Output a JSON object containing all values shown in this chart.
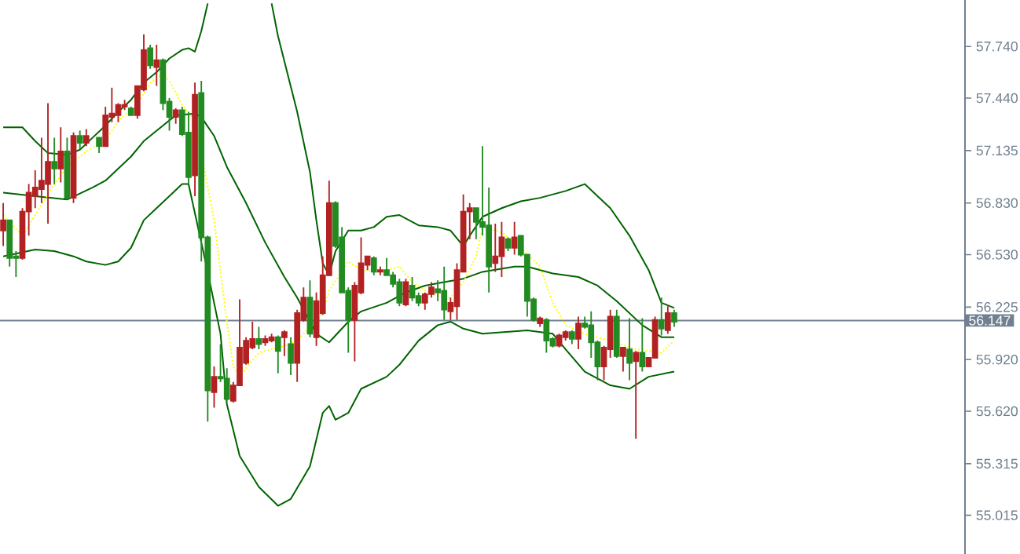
{
  "chart_data": {
    "type": "candlestick",
    "categories": [
      null,
      null,
      null,
      null,
      null,
      null,
      null,
      null,
      null,
      null,
      null,
      null,
      null,
      null,
      null,
      null,
      null,
      null,
      null,
      null,
      null,
      null,
      null,
      null,
      null,
      null,
      null,
      null,
      null,
      null,
      null,
      null,
      null,
      null,
      null,
      null,
      null,
      null,
      null,
      null,
      null,
      null,
      null,
      null,
      null,
      null,
      null,
      null,
      null,
      null,
      null,
      null,
      null,
      null,
      null,
      null,
      null,
      null,
      null,
      null,
      null,
      null,
      null,
      null,
      null,
      null,
      null,
      null,
      null,
      null,
      null,
      null,
      null,
      null,
      null,
      null,
      null,
      null,
      null,
      null,
      null,
      null,
      null,
      null,
      null,
      null,
      null,
      null,
      null,
      null,
      null,
      null,
      null,
      null,
      null,
      null,
      null,
      null,
      null,
      null,
      null,
      null,
      null,
      null,
      null,
      null,
      null,
      null,
      null,
      null,
      null,
      null,
      null,
      null,
      null,
      null,
      null,
      null,
      null,
      null,
      null,
      null,
      null,
      null,
      null,
      null,
      null,
      null,
      null,
      null,
      null,
      null,
      null,
      null,
      null,
      null,
      null,
      null,
      null,
      null,
      null,
      null,
      null,
      null,
      null,
      null,
      null,
      null,
      null,
      null,
      null
    ],
    "ohlc": [
      [
        56.67,
        56.83,
        56.58,
        56.73
      ],
      [
        56.73,
        56.73,
        56.46,
        56.51
      ],
      [
        56.52,
        56.55,
        56.4,
        56.51
      ],
      [
        56.51,
        56.8,
        56.5,
        56.78
      ],
      [
        56.78,
        56.94,
        56.64,
        56.89
      ],
      [
        56.87,
        57.02,
        56.8,
        56.92
      ],
      [
        56.91,
        57.21,
        56.83,
        56.96
      ],
      [
        56.94,
        57.41,
        56.71,
        57.07
      ],
      [
        57.07,
        57.21,
        56.94,
        57.03
      ],
      [
        57.03,
        57.27,
        56.95,
        57.13
      ],
      [
        57.13,
        57.21,
        56.85,
        56.86
      ],
      [
        56.86,
        57.24,
        56.83,
        57.22
      ],
      [
        57.22,
        57.25,
        57.14,
        57.18
      ],
      [
        57.18,
        57.26,
        57.16,
        57.22
      ],
      null,
      [
        57.21,
        57.21,
        57.12,
        57.16
      ],
      [
        57.16,
        57.39,
        57.16,
        57.34
      ],
      [
        57.33,
        57.5,
        57.3,
        57.35
      ],
      [
        57.34,
        57.41,
        57.3,
        57.4
      ],
      [
        57.39,
        57.43,
        57.37,
        57.4
      ],
      [
        57.38,
        57.39,
        57.34,
        57.34
      ],
      [
        57.34,
        57.51,
        57.32,
        57.51
      ],
      [
        57.49,
        57.81,
        57.48,
        57.72
      ],
      [
        57.73,
        57.75,
        57.61,
        57.63
      ],
      [
        57.62,
        57.75,
        57.51,
        57.66
      ],
      [
        57.66,
        57.67,
        57.37,
        57.41
      ],
      [
        57.42,
        57.44,
        57.25,
        57.33
      ],
      [
        57.33,
        57.38,
        57.29,
        57.37
      ],
      [
        57.37,
        57.39,
        57.22,
        57.23
      ],
      [
        57.24,
        57.36,
        56.94,
        56.98
      ],
      [
        56.99,
        57.53,
        56.87,
        57.46
      ],
      [
        57.47,
        57.54,
        56.49,
        56.63
      ],
      [
        56.63,
        56.64,
        55.56,
        55.74
      ],
      [
        55.73,
        55.88,
        55.64,
        55.82
      ],
      [
        55.82,
        56.01,
        55.79,
        55.81
      ],
      [
        55.81,
        55.87,
        55.68,
        55.69
      ],
      [
        55.68,
        55.79,
        55.67,
        55.77
      ],
      [
        55.77,
        56.27,
        55.77,
        55.99
      ],
      [
        55.9,
        56.05,
        55.89,
        56.03
      ],
      [
        55.99,
        56.14,
        55.98,
        56.04
      ],
      [
        56.04,
        56.11,
        55.98,
        56.01
      ],
      [
        56.02,
        56.06,
        56.0,
        56.04
      ],
      [
        56.03,
        56.07,
        56.02,
        56.05
      ],
      [
        56.05,
        56.06,
        55.84,
        55.97
      ],
      [
        56.05,
        56.09,
        55.94,
        56.08
      ],
      [
        56.01,
        56.05,
        55.83,
        55.9
      ],
      [
        55.9,
        56.21,
        55.79,
        56.19
      ],
      [
        56.15,
        56.34,
        56.14,
        56.28
      ],
      [
        56.28,
        56.38,
        56.05,
        56.07
      ],
      [
        56.05,
        56.31,
        56.0,
        56.26
      ],
      [
        56.19,
        56.52,
        56.18,
        56.41
      ],
      [
        56.41,
        56.96,
        56.41,
        56.83
      ],
      [
        56.83,
        56.84,
        56.57,
        56.58
      ],
      [
        56.63,
        56.69,
        56.31,
        56.31
      ],
      [
        56.32,
        56.34,
        55.96,
        56.15
      ],
      [
        56.15,
        56.37,
        55.91,
        56.35
      ],
      [
        56.31,
        56.63,
        56.3,
        56.48
      ],
      [
        56.47,
        56.52,
        56.44,
        56.52
      ],
      [
        56.51,
        56.52,
        56.41,
        56.43
      ],
      [
        56.43,
        56.46,
        56.41,
        56.44
      ],
      [
        56.44,
        56.51,
        56.41,
        56.41
      ],
      [
        56.41,
        56.43,
        56.34,
        56.36
      ],
      [
        56.37,
        56.39,
        56.23,
        56.25
      ],
      [
        56.24,
        56.39,
        56.23,
        56.37
      ],
      [
        56.35,
        56.4,
        56.26,
        56.28
      ],
      [
        56.29,
        56.31,
        56.23,
        56.25
      ],
      [
        56.25,
        56.31,
        56.21,
        56.3
      ],
      [
        56.3,
        56.37,
        56.28,
        56.34
      ],
      [
        56.33,
        56.38,
        56.26,
        56.31
      ],
      [
        56.32,
        56.46,
        56.15,
        56.21
      ],
      [
        56.2,
        56.28,
        56.15,
        56.25
      ],
      [
        56.23,
        56.48,
        56.15,
        56.44
      ],
      [
        56.43,
        56.88,
        56.43,
        56.78
      ],
      [
        56.78,
        56.83,
        56.62,
        56.8
      ],
      [
        56.8,
        56.8,
        56.62,
        56.72
      ],
      [
        56.72,
        57.16,
        56.64,
        56.69
      ],
      [
        56.7,
        56.92,
        56.31,
        56.46
      ],
      [
        56.48,
        56.71,
        56.43,
        56.52
      ],
      [
        56.52,
        56.72,
        56.4,
        56.63
      ],
      [
        56.62,
        56.63,
        56.55,
        56.57
      ],
      [
        56.57,
        56.72,
        56.53,
        56.63
      ],
      [
        56.64,
        56.64,
        56.52,
        56.53
      ],
      [
        56.53,
        56.53,
        56.17,
        56.26
      ],
      [
        56.27,
        56.28,
        56.14,
        56.15
      ],
      [
        56.13,
        56.17,
        56.11,
        56.16
      ],
      [
        56.15,
        56.16,
        55.96,
        56.03
      ],
      [
        56.04,
        56.05,
        55.99,
        56.0
      ],
      [
        56.0,
        56.07,
        55.99,
        56.06
      ],
      [
        56.05,
        56.09,
        56.03,
        56.08
      ],
      [
        56.08,
        56.09,
        56.01,
        56.04
      ],
      [
        56.04,
        56.17,
        55.98,
        56.13
      ],
      [
        56.13,
        56.17,
        56.1,
        56.11
      ],
      [
        56.12,
        56.2,
        55.93,
        56.02
      ],
      [
        56.02,
        56.03,
        55.8,
        55.88
      ],
      [
        55.88,
        56.0,
        55.8,
        55.99
      ],
      [
        55.98,
        56.21,
        55.93,
        56.17
      ],
      [
        56.17,
        56.21,
        55.93,
        55.94
      ],
      [
        55.94,
        55.99,
        55.85,
        55.99
      ],
      [
        55.98,
        56.16,
        55.8,
        55.9
      ],
      [
        55.91,
        55.97,
        55.46,
        55.96
      ],
      [
        55.96,
        56.16,
        55.85,
        55.88
      ],
      [
        55.88,
        55.93,
        55.88,
        55.93
      ],
      [
        55.93,
        56.17,
        55.93,
        56.15
      ],
      [
        56.15,
        56.28,
        56.06,
        56.1
      ],
      [
        56.09,
        56.23,
        56.07,
        56.19
      ],
      [
        56.19,
        56.21,
        56.11,
        56.14
      ],
      null,
      null,
      null,
      null,
      null,
      null,
      null,
      null,
      null,
      null,
      null,
      null,
      null,
      null,
      null,
      null,
      null,
      null,
      null,
      null,
      null,
      null,
      null,
      null,
      null,
      null,
      null,
      null,
      null,
      null,
      null,
      null,
      null,
      null,
      null,
      null,
      null,
      null,
      null,
      null,
      null,
      null,
      null,
      null,
      null
    ],
    "colors": [
      "#b22222",
      "#228b22",
      "#228b22",
      "#b22222",
      "#b22222",
      "#b22222",
      "#b22222",
      "#b22222",
      "#228b22",
      "#b22222",
      "#228b22",
      "#b22222",
      "#228b22",
      "#b22222",
      null,
      "#228b22",
      "#b22222",
      "#b22222",
      "#b22222",
      "#b22222",
      "#228b22",
      "#b22222",
      "#b22222",
      "#228b22",
      "#b22222",
      "#228b22",
      "#228b22",
      "#b22222",
      "#228b22",
      "#228b22",
      "#b22222",
      "#228b22",
      "#228b22",
      "#b22222",
      "#228b22",
      "#228b22",
      "#b22222",
      "#b22222",
      "#b22222",
      "#b22222",
      "#228b22",
      "#b22222",
      "#b22222",
      "#228b22",
      "#b22222",
      "#228b22",
      "#b22222",
      "#b22222",
      "#228b22",
      "#b22222",
      "#b22222",
      "#b22222",
      "#228b22",
      "#228b22",
      "#228b22",
      "#b22222",
      "#b22222",
      "#b22222",
      "#228b22",
      "#b22222",
      "#228b22",
      "#228b22",
      "#228b22",
      "#b22222",
      "#228b22",
      "#228b22",
      "#b22222",
      "#b22222",
      "#228b22",
      "#228b22",
      "#b22222",
      "#b22222",
      "#b22222",
      "#b22222",
      "#228b22",
      "#228b22",
      "#228b22",
      "#b22222",
      "#b22222",
      "#228b22",
      "#b22222",
      "#228b22",
      "#228b22",
      "#228b22",
      "#b22222",
      "#228b22",
      "#228b22",
      "#b22222",
      "#b22222",
      "#228b22",
      "#b22222",
      "#228b22",
      "#228b22",
      "#228b22",
      "#b22222",
      "#b22222",
      "#228b22",
      "#b22222",
      "#228b22",
      "#b22222",
      "#228b22",
      "#b22222",
      "#b22222",
      "#228b22",
      "#b22222",
      "#228b22",
      null,
      null,
      null,
      null,
      null,
      null,
      null,
      null,
      null,
      null,
      null,
      null,
      null,
      null,
      null,
      null,
      null,
      null,
      null,
      null,
      null,
      null,
      null,
      null,
      null,
      null,
      null,
      null,
      null,
      null,
      null,
      null,
      null,
      null,
      null,
      null,
      null,
      null,
      null,
      null,
      null,
      null,
      null,
      null,
      null
    ],
    "series": [
      {
        "type": "line",
        "color": "#006400",
        "line_style": "solid",
        "values": [
          57.27,
          null,
          null,
          57.27,
          null,
          57.19,
          null,
          57.12,
          null,
          null,
          57.11,
          null,
          57.14,
          null,
          57.21,
          null,
          57.28,
          null,
          57.36,
          null,
          57.43,
          null,
          57.53,
          null,
          57.59,
          null,
          57.67,
          null,
          57.72,
          57.73,
          57.71,
          57.83,
          57.99,
          null,
          null,
          null,
          null,
          null,
          null,
          null,
          null,
          null,
          null,
          null,
          null,
          null,
          null,
          null,
          null,
          null,
          null,
          null,
          null,
          null,
          null,
          null,
          null,
          null,
          null,
          null,
          null,
          null,
          null,
          null,
          null,
          null,
          null,
          null,
          null,
          null,
          null,
          null,
          null,
          null,
          null,
          null,
          null,
          null,
          null,
          null,
          null,
          null,
          null,
          null,
          null,
          null,
          null,
          null,
          null,
          null,
          null,
          null,
          null,
          null,
          null,
          null,
          null,
          null,
          null,
          null,
          null,
          null,
          null,
          null,
          null,
          null,
          null,
          null,
          null,
          null,
          null,
          null,
          null,
          null,
          null,
          null,
          null,
          null,
          null,
          null,
          null,
          null,
          null,
          null,
          null,
          null,
          null,
          null,
          null,
          null,
          null,
          null,
          null,
          null,
          null,
          null,
          null,
          null,
          null,
          null,
          null,
          null,
          null,
          null,
          null,
          null,
          null,
          null,
          null,
          null,
          null
        ]
      },
      {
        "type": "line",
        "color": "#006400",
        "line_style": "solid",
        "values": [
          null,
          null,
          null,
          null,
          null,
          null,
          null,
          null,
          null,
          null,
          null,
          null,
          null,
          null,
          null,
          null,
          null,
          null,
          null,
          null,
          null,
          null,
          null,
          null,
          null,
          null,
          null,
          null,
          null,
          null,
          null,
          null,
          null,
          null,
          null,
          null,
          null,
          null,
          null,
          null,
          null,
          null,
          57.99,
          57.8,
          null,
          null,
          57.36,
          null,
          57.01,
          56.73,
          56.48,
          56.41,
          56.55,
          null,
          56.67,
          null,
          56.67,
          null,
          56.69,
          null,
          56.75,
          null,
          56.76,
          null,
          null,
          56.7,
          null,
          null,
          56.69,
          null,
          56.67,
          null,
          56.58,
          56.64,
          null,
          56.75,
          null,
          null,
          56.8,
          null,
          null,
          56.84,
          null,
          null,
          56.86,
          null,
          null,
          null,
          56.9,
          null,
          null,
          56.94,
          null,
          56.87,
          null,
          56.8,
          null,
          null,
          56.64,
          null,
          null,
          56.44,
          null,
          56.25,
          null,
          56.22,
          null,
          null,
          null,
          null,
          null,
          null,
          null,
          null,
          null,
          null,
          null,
          null,
          null,
          null,
          null,
          null,
          null,
          null,
          null,
          null,
          null,
          null,
          null,
          null,
          null,
          null,
          null,
          null,
          null,
          null,
          null,
          null,
          null,
          null,
          null,
          null,
          null,
          null,
          null,
          null,
          null,
          null,
          null,
          null,
          null
        ]
      },
      {
        "type": "line",
        "color": "#006400",
        "line_style": "solid",
        "values": [
          56.89,
          null,
          null,
          null,
          null,
          56.87,
          null,
          null,
          null,
          null,
          56.85,
          null,
          null,
          null,
          56.92,
          null,
          56.96,
          null,
          null,
          null,
          57.1,
          null,
          57.19,
          null,
          null,
          57.28,
          null,
          57.34,
          null,
          null,
          57.35,
          57.33,
          null,
          57.22,
          null,
          57.04,
          null,
          null,
          56.83,
          null,
          null,
          56.6,
          null,
          null,
          56.4,
          null,
          56.28,
          null,
          null,
          56.07,
          null,
          56.02,
          null,
          null,
          56.14,
          null,
          56.2,
          null,
          null,
          null,
          56.25,
          null,
          null,
          56.31,
          null,
          null,
          56.35,
          null,
          null,
          56.37,
          null,
          null,
          56.39,
          null,
          null,
          56.43,
          null,
          null,
          null,
          null,
          56.46,
          null,
          56.46,
          null,
          null,
          null,
          56.42,
          null,
          null,
          null,
          56.4,
          null,
          null,
          56.35,
          null,
          null,
          56.26,
          null,
          null,
          null,
          56.12,
          null,
          null,
          56.05,
          null,
          56.05,
          null,
          null,
          null,
          null,
          null,
          null,
          null,
          null,
          null,
          null,
          null,
          null,
          null,
          null,
          null,
          null,
          null,
          null,
          null,
          null,
          null,
          null,
          null,
          null,
          null,
          null,
          null,
          null,
          null,
          null,
          null,
          null,
          null,
          null,
          null,
          null,
          null,
          null,
          null,
          null,
          null,
          null,
          null,
          null,
          null
        ]
      },
      {
        "type": "line",
        "color": "#006400",
        "line_style": "solid",
        "values": [
          56.52,
          null,
          null,
          null,
          null,
          56.56,
          null,
          null,
          56.55,
          null,
          null,
          56.52,
          null,
          56.49,
          null,
          null,
          56.47,
          null,
          56.49,
          null,
          56.57,
          null,
          56.73,
          null,
          56.8,
          null,
          56.87,
          null,
          56.94,
          56.94,
          null,
          null,
          56.43,
          null,
          56.07,
          55.66,
          null,
          55.36,
          null,
          null,
          55.18,
          null,
          null,
          55.07,
          null,
          55.11,
          null,
          null,
          55.3,
          null,
          55.61,
          55.65,
          55.57,
          null,
          55.61,
          null,
          55.75,
          null,
          null,
          null,
          55.82,
          null,
          55.89,
          null,
          null,
          56.03,
          null,
          null,
          56.12,
          null,
          56.14,
          null,
          56.1,
          null,
          null,
          56.07,
          null,
          null,
          null,
          null,
          null,
          null,
          56.09,
          null,
          null,
          null,
          56.07,
          null,
          55.98,
          null,
          null,
          55.85,
          null,
          null,
          null,
          55.77,
          null,
          null,
          55.75,
          null,
          null,
          55.82,
          null,
          null,
          null,
          55.85,
          null,
          null,
          null,
          null,
          null,
          null,
          null,
          null,
          null,
          null,
          null,
          null,
          null,
          null,
          null,
          null,
          null,
          null,
          null,
          null,
          null,
          null,
          null,
          null,
          null,
          null,
          null,
          null,
          null,
          null,
          null,
          null,
          null,
          null,
          null,
          null,
          null,
          null,
          null,
          null,
          null,
          null,
          null,
          null,
          null
        ]
      },
      {
        "type": "line",
        "color": "#ffff00",
        "line_style": "dotted",
        "values": [
          56.76,
          null,
          null,
          56.64,
          null,
          56.76,
          null,
          null,
          56.94,
          null,
          57.04,
          null,
          null,
          57.13,
          null,
          null,
          57.19,
          null,
          57.31,
          null,
          null,
          57.4,
          null,
          57.53,
          null,
          57.58,
          57.54,
          null,
          57.4,
          null,
          57.31,
          null,
          null,
          56.73,
          56.43,
          56.14,
          55.88,
          55.82,
          55.87,
          null,
          55.96,
          null,
          null,
          null,
          56.0,
          null,
          56.03,
          null,
          56.11,
          null,
          56.19,
          56.32,
          null,
          null,
          56.49,
          null,
          56.44,
          null,
          null,
          56.43,
          null,
          null,
          56.46,
          null,
          56.37,
          null,
          null,
          56.3,
          null,
          null,
          56.28,
          null,
          56.37,
          null,
          56.52,
          56.69,
          null,
          null,
          56.66,
          null,
          null,
          56.57,
          null,
          null,
          56.46,
          null,
          56.25,
          null,
          56.12,
          null,
          null,
          56.07,
          null,
          null,
          null,
          56.03,
          null,
          null,
          null,
          55.98,
          null,
          null,
          null,
          55.96,
          null,
          56.03,
          null,
          null,
          null,
          null,
          null,
          null,
          null,
          null,
          null,
          null,
          null,
          null,
          null,
          null,
          null,
          null,
          null,
          null,
          null,
          null,
          null,
          null,
          null,
          null,
          null,
          null,
          null,
          null,
          null,
          null,
          null,
          null,
          null,
          null,
          null,
          null,
          null,
          null,
          null,
          null,
          null,
          null,
          null,
          null,
          null
        ]
      }
    ],
    "ylim": [
      54.79,
      58.01
    ],
    "yticks": [
      {
        "value": 57.74,
        "label": "57.740"
      },
      {
        "value": 57.44,
        "label": "57.440"
      },
      {
        "value": 57.135,
        "label": "57.135"
      },
      {
        "value": 56.83,
        "label": "56.830"
      },
      {
        "value": 56.53,
        "label": "56.530"
      },
      {
        "value": 56.225,
        "label": "56.225"
      },
      {
        "value": 55.92,
        "label": "55.920"
      },
      {
        "value": 55.62,
        "label": "55.620"
      },
      {
        "value": 55.315,
        "label": "55.315"
      },
      {
        "value": 55.015,
        "label": "55.015"
      }
    ],
    "ref_lines": [
      {
        "axis": "y",
        "value": 56.147,
        "label": "56.147",
        "color": "#708090"
      }
    ],
    "tick_labels": "y"
  }
}
